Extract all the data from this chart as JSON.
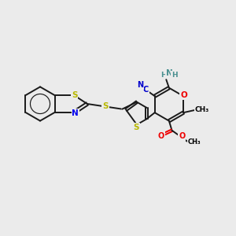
{
  "bg_color": "#ebebeb",
  "colors": {
    "bond": "#1a1a1a",
    "sulfur": "#b8b800",
    "nitrogen": "#0000ee",
    "oxygen": "#ee0000",
    "nh2": "#4a9090",
    "cn": "#0000cc"
  },
  "layout": {
    "xlim": [
      0,
      10
    ],
    "ylim": [
      0,
      10
    ],
    "figsize": [
      3.0,
      3.0
    ],
    "dpi": 100
  }
}
